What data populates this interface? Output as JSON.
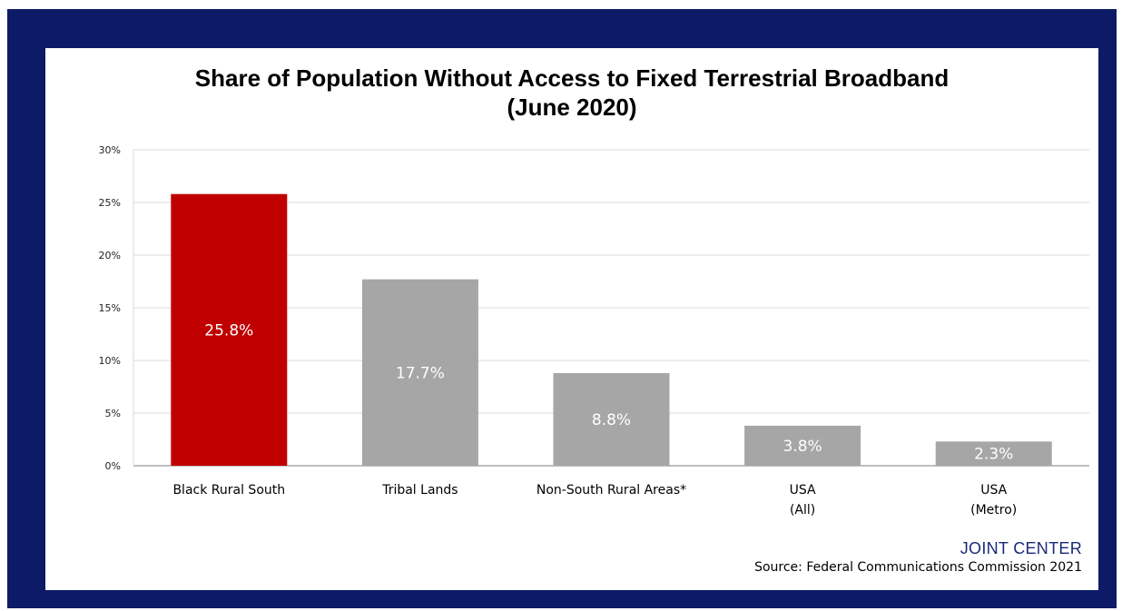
{
  "chart_data": {
    "type": "bar",
    "title": "Share of Population Without Access to Fixed Terrestrial Broadband",
    "subtitle": "(June 2020)",
    "categories": [
      [
        "Black Rural South"
      ],
      [
        "Tribal Lands"
      ],
      [
        "Non-South Rural Areas*"
      ],
      [
        "USA",
        "(All)"
      ],
      [
        "USA",
        "(Metro)"
      ]
    ],
    "values": [
      25.8,
      17.7,
      8.8,
      3.8,
      2.3
    ],
    "data_labels": [
      "25.8%",
      "17.7%",
      "8.8%",
      "3.8%",
      "2.3%"
    ],
    "bar_colors": [
      "#c00000",
      "#a6a6a6",
      "#a6a6a6",
      "#a6a6a6",
      "#a6a6a6"
    ],
    "ylim": [
      0,
      30
    ],
    "yticks": [
      0,
      5,
      10,
      15,
      20,
      25,
      30
    ],
    "ytick_labels": [
      "0%",
      "5%",
      "10%",
      "15%",
      "20%",
      "25%",
      "30%"
    ],
    "xlabel": "",
    "ylabel": "",
    "grid": true,
    "legend": "none"
  },
  "footer": {
    "brand": "JOINT CENTER",
    "source": "Source: Federal Communications Commission 2021"
  },
  "colors": {
    "frame": "#0d1b66",
    "gridline": "#d9d9d9",
    "brand": "#1a2a78"
  }
}
